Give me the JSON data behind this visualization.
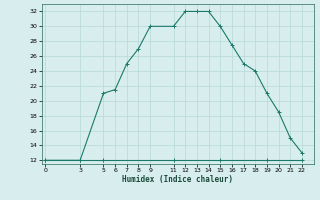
{
  "xlabel": "Humidex (Indice chaleur)",
  "ylabel": "",
  "bg_color": "#d8eeee",
  "grid_color": "#b8d8d8",
  "line_color": "#1a7a6a",
  "x_ticks": [
    0,
    3,
    5,
    6,
    7,
    8,
    9,
    11,
    12,
    13,
    14,
    15,
    16,
    17,
    18,
    19,
    20,
    21,
    22
  ],
  "y_ticks": [
    12,
    14,
    16,
    18,
    20,
    22,
    24,
    26,
    28,
    30,
    32
  ],
  "ylim": [
    11.5,
    33
  ],
  "xlim": [
    -0.3,
    23
  ],
  "curve_x": [
    0,
    3,
    5,
    6,
    7,
    8,
    9,
    11,
    12,
    13,
    14,
    15,
    16,
    17,
    18,
    19,
    20,
    21,
    22
  ],
  "curve_y": [
    12,
    12,
    21,
    21.5,
    25,
    27,
    30,
    30,
    32,
    32,
    32,
    30,
    27.5,
    25,
    24,
    21,
    18.5,
    15,
    13
  ],
  "flat_x": [
    0,
    3,
    5,
    11,
    15,
    19,
    22
  ],
  "flat_y": [
    12,
    12,
    12,
    12,
    12,
    12,
    12
  ]
}
